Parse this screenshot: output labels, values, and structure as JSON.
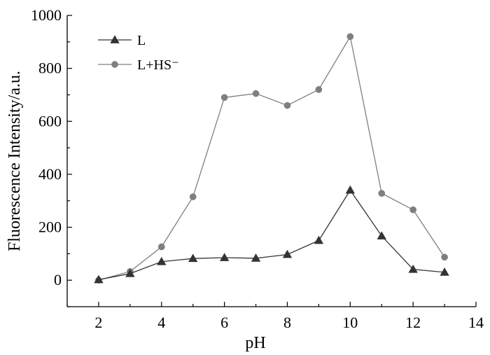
{
  "chart_data": {
    "type": "line",
    "title": "",
    "xlabel": "pH",
    "ylabel": "Fluorescence Intensity/a.u.",
    "xlim": [
      1,
      14
    ],
    "ylim": [
      -100,
      1000
    ],
    "xticks": [
      2,
      4,
      6,
      8,
      10,
      12,
      14
    ],
    "yticks": [
      0,
      200,
      400,
      600,
      800,
      1000
    ],
    "grid": false,
    "legend_position": "top-left",
    "x": [
      2,
      3,
      4,
      5,
      6,
      7,
      8,
      9,
      10,
      11,
      12,
      13
    ],
    "series": [
      {
        "name": "L",
        "marker": "triangle",
        "color": "#333333",
        "values": [
          2,
          25,
          70,
          82,
          85,
          83,
          97,
          150,
          340,
          167,
          41,
          30
        ]
      },
      {
        "name": "L+HS⁻",
        "marker": "circle",
        "color": "#7f7f7f",
        "values": [
          0,
          33,
          126,
          315,
          690,
          705,
          660,
          720,
          920,
          328,
          266,
          87
        ]
      }
    ]
  }
}
